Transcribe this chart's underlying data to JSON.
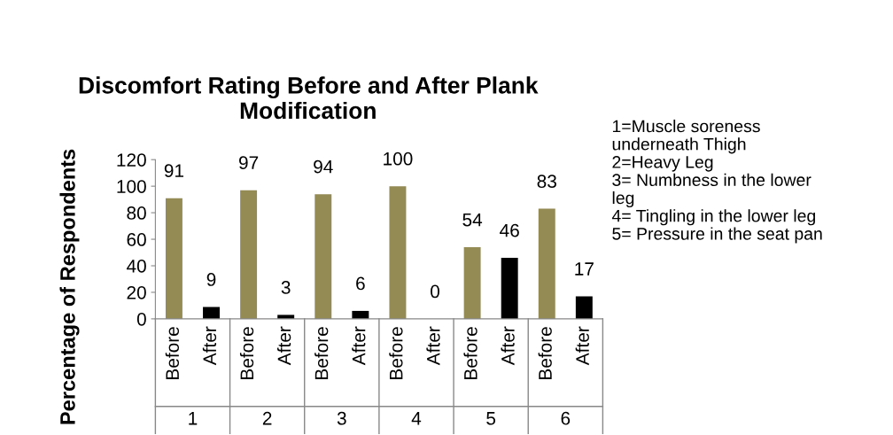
{
  "chart_data": {
    "type": "bar",
    "title": "Discomfort Rating Before and After Plank\nModification",
    "ylabel": "Percentage of Respondents",
    "categories": [
      "Before",
      "After",
      "Before",
      "After",
      "Before",
      "After",
      "Before",
      "After",
      "Before",
      "After",
      "Before",
      "After"
    ],
    "values": [
      91,
      9,
      97,
      3,
      94,
      6,
      100,
      0,
      54,
      46,
      83,
      17
    ],
    "colors": [
      "#948a54",
      "#000000",
      "#948a54",
      "#000000",
      "#948a54",
      "#000000",
      "#948a54",
      "#000000",
      "#948a54",
      "#000000",
      "#948a54",
      "#000000"
    ],
    "data_labels": true,
    "ylim": [
      0,
      120
    ],
    "yticks": [
      0,
      20,
      40,
      60,
      80,
      100,
      120
    ],
    "grid": false,
    "legend": false,
    "annotations": [
      "1",
      "2",
      "3",
      "4",
      "5",
      "6",
      "1=Muscle soreness\nunderneath Thigh\n2=Heavy Leg\n3= Numbness in the lower\nleg\n4= Tingling in the lower leg\n5= Pressure in the seat pan"
    ]
  }
}
